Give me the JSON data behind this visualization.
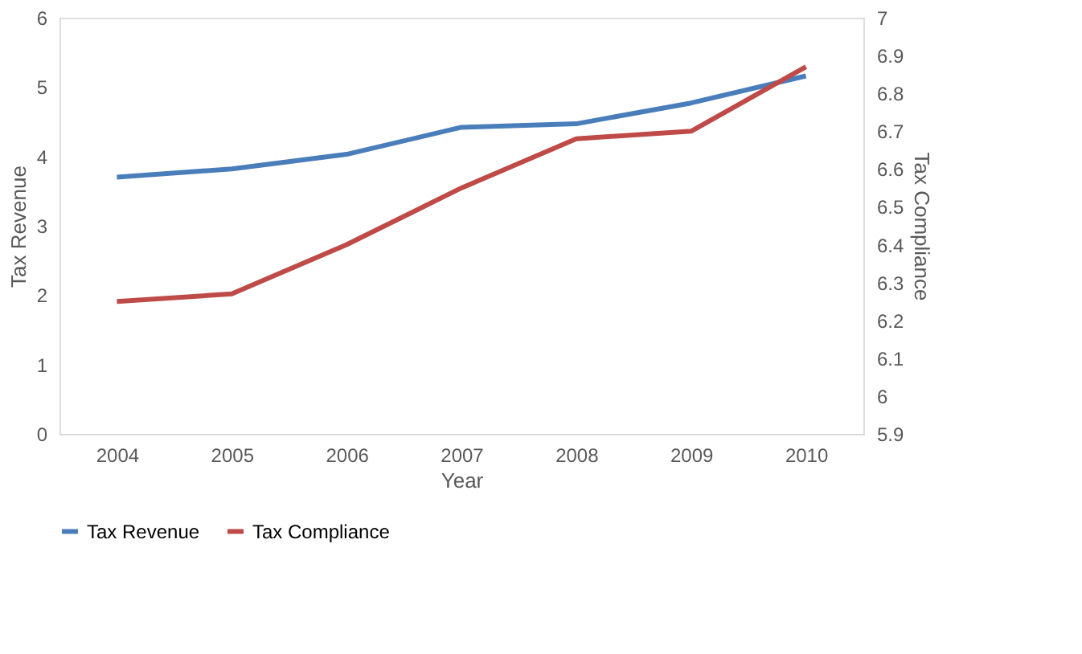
{
  "chart_data": {
    "type": "line",
    "xlabel": "Year",
    "ylabel": "Tax Revenue",
    "y2label": "Tax Compliance",
    "categories": [
      "2004",
      "2005",
      "2006",
      "2007",
      "2008",
      "2009",
      "2010"
    ],
    "series": [
      {
        "name": "Tax Revenue",
        "color": "#4a7ebb",
        "values": [
          3.7,
          3.82,
          4.03,
          4.42,
          4.47,
          4.77,
          5.16
        ]
      },
      {
        "name": "Tax Compliance",
        "color": "#be4b48",
        "axis": "y2",
        "values": [
          6.25,
          6.27,
          6.4,
          6.55,
          6.68,
          6.7,
          6.87
        ]
      }
    ],
    "ylim": [
      0,
      6
    ],
    "yticks": [
      0,
      1,
      2,
      3,
      4,
      5,
      6
    ],
    "y2lim": [
      5.9,
      7
    ],
    "y2ticks": [
      5.9,
      6,
      6.1,
      6.2,
      6.3,
      6.4,
      6.5,
      6.6,
      6.7,
      6.8,
      6.9,
      7
    ],
    "grid": false,
    "legend": "bottom",
    "marker": "none",
    "line_style": "solid"
  }
}
